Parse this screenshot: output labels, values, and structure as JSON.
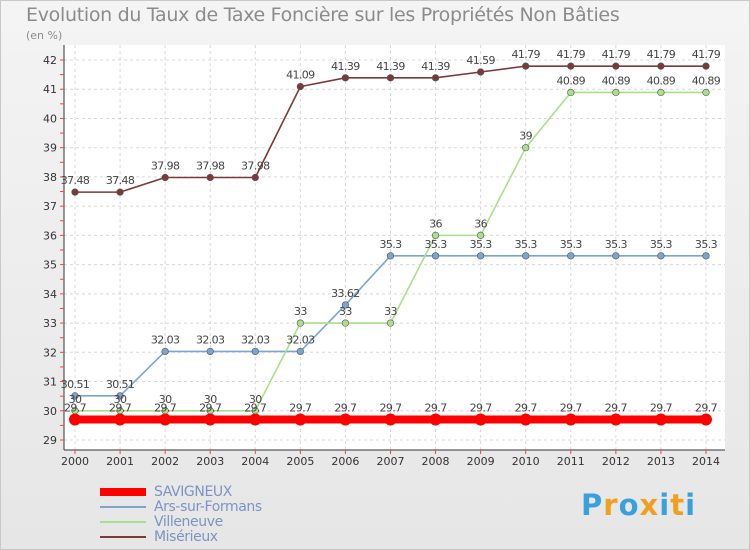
{
  "chart_data": {
    "type": "line",
    "title": "Evolution du Taux de Taxe Foncière sur les Propriétés Non Bâties",
    "ylabel": "(en %)",
    "xlabel": "",
    "x": [
      "2000",
      "2001",
      "2002",
      "2003",
      "2004",
      "2005",
      "2006",
      "2007",
      "2008",
      "2009",
      "2010",
      "2011",
      "2012",
      "2013",
      "2014"
    ],
    "yticks": [
      "29",
      "30",
      "31",
      "32",
      "33",
      "34",
      "35",
      "36",
      "37",
      "38",
      "39",
      "40",
      "41",
      "42"
    ],
    "ylim": [
      29,
      42
    ],
    "grid": true,
    "legend": "bottom-left",
    "series": [
      {
        "name": "SAVIGNEUX",
        "color": "#ff0000",
        "values": [
          29.7,
          29.7,
          29.7,
          29.7,
          29.7,
          29.7,
          29.7,
          29.7,
          29.7,
          29.7,
          29.7,
          29.7,
          29.7,
          29.7,
          29.7
        ],
        "labels": [
          "29.7",
          "29.7",
          "29.7",
          "29.7",
          "29.7",
          "29.7",
          "29.7",
          "29.7",
          "29.7",
          "29.7",
          "29.7",
          "29.7",
          "29.7",
          "29.7",
          "29.7"
        ]
      },
      {
        "name": "Ars-sur-Formans",
        "color": "#7ba4d0",
        "values": [
          30.51,
          30.51,
          32.03,
          32.03,
          32.03,
          32.03,
          33.62,
          35.3,
          35.3,
          35.3,
          35.3,
          35.3,
          35.3,
          35.3,
          35.3
        ],
        "labels": [
          "30.51",
          "30.51",
          "32.03",
          "32.03",
          "32.03",
          "32.03",
          "33.62",
          "35.3",
          "35.3",
          "35.3",
          "35.3",
          "35.3",
          "35.3",
          "35.3",
          "35.3"
        ]
      },
      {
        "name": "Villeneuve",
        "color": "#a8e08c",
        "values": [
          30,
          30,
          30,
          30,
          30,
          33,
          33,
          33,
          36,
          36,
          39,
          40.89,
          40.89,
          40.89,
          40.89
        ],
        "labels": [
          "30",
          "30",
          "30",
          "30",
          "30",
          "33",
          "33",
          "33",
          "36",
          "36",
          "39",
          "40.89",
          "40.89",
          "40.89",
          "40.89"
        ]
      },
      {
        "name": "Misérieux",
        "color": "#7b3a3a",
        "values": [
          37.48,
          37.48,
          37.98,
          37.98,
          37.98,
          41.09,
          41.39,
          41.39,
          41.39,
          41.59,
          41.79,
          41.79,
          41.79,
          41.79,
          41.79
        ],
        "labels": [
          "37.48",
          "37.48",
          "37.98",
          "37.98",
          "37.98",
          "41.09",
          "41.39",
          "41.39",
          "41.39",
          "41.59",
          "41.79",
          "41.79",
          "41.79",
          "41.79",
          "41.79"
        ]
      }
    ]
  },
  "logo": {
    "letters": [
      "P",
      "r",
      "o",
      "x",
      "i",
      "t",
      "i"
    ],
    "colors": [
      "#3aa0dc",
      "#f0a020",
      "#3aa0dc",
      "#f0a020",
      "#3aa0dc",
      "#f0a020",
      "#3aa0dc"
    ]
  }
}
